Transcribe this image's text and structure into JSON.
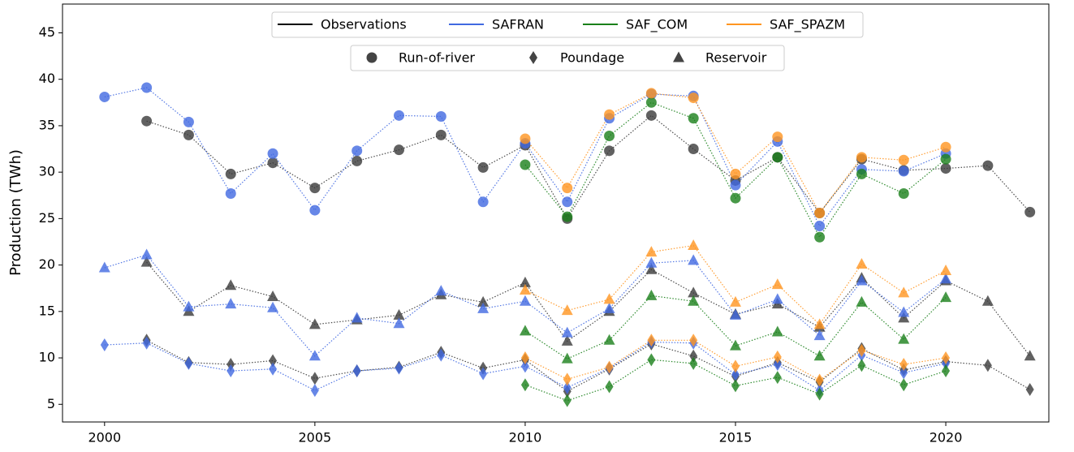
{
  "chart_data": {
    "type": "scatter",
    "ylabel": "Production (TWh)",
    "x": [
      2000,
      2001,
      2002,
      2003,
      2004,
      2005,
      2006,
      2007,
      2008,
      2009,
      2010,
      2011,
      2012,
      2013,
      2014,
      2015,
      2016,
      2017,
      2018,
      2019,
      2020,
      2021,
      2022
    ],
    "xlim": [
      1999,
      2022.45
    ],
    "xticks": [
      2000,
      2005,
      2010,
      2015,
      2020
    ],
    "ylim": [
      3.1,
      48.1
    ],
    "yticks": [
      5,
      10,
      15,
      20,
      25,
      30,
      35,
      40,
      45
    ],
    "grid": false,
    "legend_marker_color": "#444444",
    "marker_groups": [
      {
        "name": "Run-of-river",
        "marker": "circle"
      },
      {
        "name": "Poundage",
        "marker": "diamond"
      },
      {
        "name": "Reservoir",
        "marker": "triangle"
      }
    ],
    "series": [
      {
        "name": "Observations",
        "color": "#000000",
        "marker_color": "#3a3a3a",
        "values": [
          [
            null,
            35.5,
            34.0,
            29.8,
            31.0,
            28.3,
            31.2,
            32.4,
            34.0,
            30.5,
            32.9,
            25.0,
            32.3,
            36.1,
            32.5,
            29.1,
            31.6,
            25.6,
            31.4,
            30.2,
            30.4,
            30.7,
            25.7
          ],
          [
            null,
            11.9,
            9.5,
            9.3,
            9.7,
            7.8,
            8.6,
            9.0,
            10.6,
            8.9,
            9.8,
            6.4,
            8.8,
            11.5,
            10.2,
            8.0,
            9.5,
            7.4,
            11.0,
            8.7,
            9.6,
            9.2,
            6.6
          ],
          [
            null,
            20.3,
            15.0,
            17.8,
            16.6,
            13.6,
            14.1,
            14.6,
            16.8,
            16.0,
            18.1,
            11.8,
            15.0,
            19.5,
            17.0,
            14.7,
            15.8,
            13.3,
            18.6,
            14.3,
            18.3,
            16.1,
            10.2
          ]
        ]
      },
      {
        "name": "SAFRAN",
        "color": "#4169e1",
        "marker_color": "#4169e1",
        "values": [
          [
            38.1,
            39.1,
            35.4,
            27.7,
            32.0,
            25.9,
            32.3,
            36.1,
            36.0,
            26.8,
            33.1,
            26.8,
            35.8,
            38.4,
            38.2,
            28.6,
            33.3,
            24.2,
            30.3,
            30.1,
            32.0,
            null,
            null
          ],
          [
            11.4,
            11.6,
            9.4,
            8.6,
            8.8,
            6.5,
            8.6,
            8.9,
            10.3,
            8.3,
            9.1,
            6.8,
            8.9,
            11.7,
            11.6,
            8.2,
            9.3,
            6.5,
            10.3,
            8.4,
            9.4,
            null,
            null
          ],
          [
            19.7,
            21.1,
            15.5,
            15.8,
            15.4,
            10.2,
            14.3,
            13.7,
            17.2,
            15.3,
            16.1,
            12.7,
            15.3,
            20.2,
            20.5,
            14.6,
            16.3,
            12.4,
            18.3,
            14.9,
            18.5,
            null,
            null
          ]
        ]
      },
      {
        "name": "SAF_COM",
        "color": "#1a801a",
        "marker_color": "#1a801a",
        "values": [
          [
            null,
            null,
            null,
            null,
            null,
            null,
            null,
            null,
            null,
            null,
            30.8,
            25.2,
            33.9,
            37.5,
            35.8,
            27.2,
            31.6,
            23.0,
            29.8,
            27.7,
            31.4,
            null,
            null
          ],
          [
            null,
            null,
            null,
            null,
            null,
            null,
            null,
            null,
            null,
            null,
            7.1,
            5.4,
            6.9,
            9.8,
            9.4,
            7.0,
            7.9,
            6.1,
            9.2,
            7.1,
            8.6,
            null,
            null
          ],
          [
            null,
            null,
            null,
            null,
            null,
            null,
            null,
            null,
            null,
            null,
            12.9,
            9.9,
            11.9,
            16.7,
            16.1,
            11.3,
            12.8,
            10.2,
            16.0,
            12.0,
            16.5,
            null,
            null
          ]
        ]
      },
      {
        "name": "SAF_SPAZM",
        "color": "#ff9520",
        "marker_color": "#ff9520",
        "values": [
          [
            null,
            null,
            null,
            null,
            null,
            null,
            null,
            null,
            null,
            null,
            33.6,
            28.3,
            36.2,
            38.5,
            38.0,
            29.8,
            33.8,
            25.6,
            31.6,
            31.3,
            32.7,
            null,
            null
          ],
          [
            null,
            null,
            null,
            null,
            null,
            null,
            null,
            null,
            null,
            null,
            10.0,
            7.7,
            9.0,
            11.9,
            11.9,
            9.1,
            10.1,
            7.6,
            10.8,
            9.3,
            10.0,
            null,
            null
          ],
          [
            null,
            null,
            null,
            null,
            null,
            null,
            null,
            null,
            null,
            null,
            17.3,
            15.1,
            16.3,
            21.4,
            22.1,
            16.0,
            17.9,
            13.6,
            20.1,
            17.0,
            19.4,
            null,
            null
          ]
        ]
      }
    ]
  }
}
